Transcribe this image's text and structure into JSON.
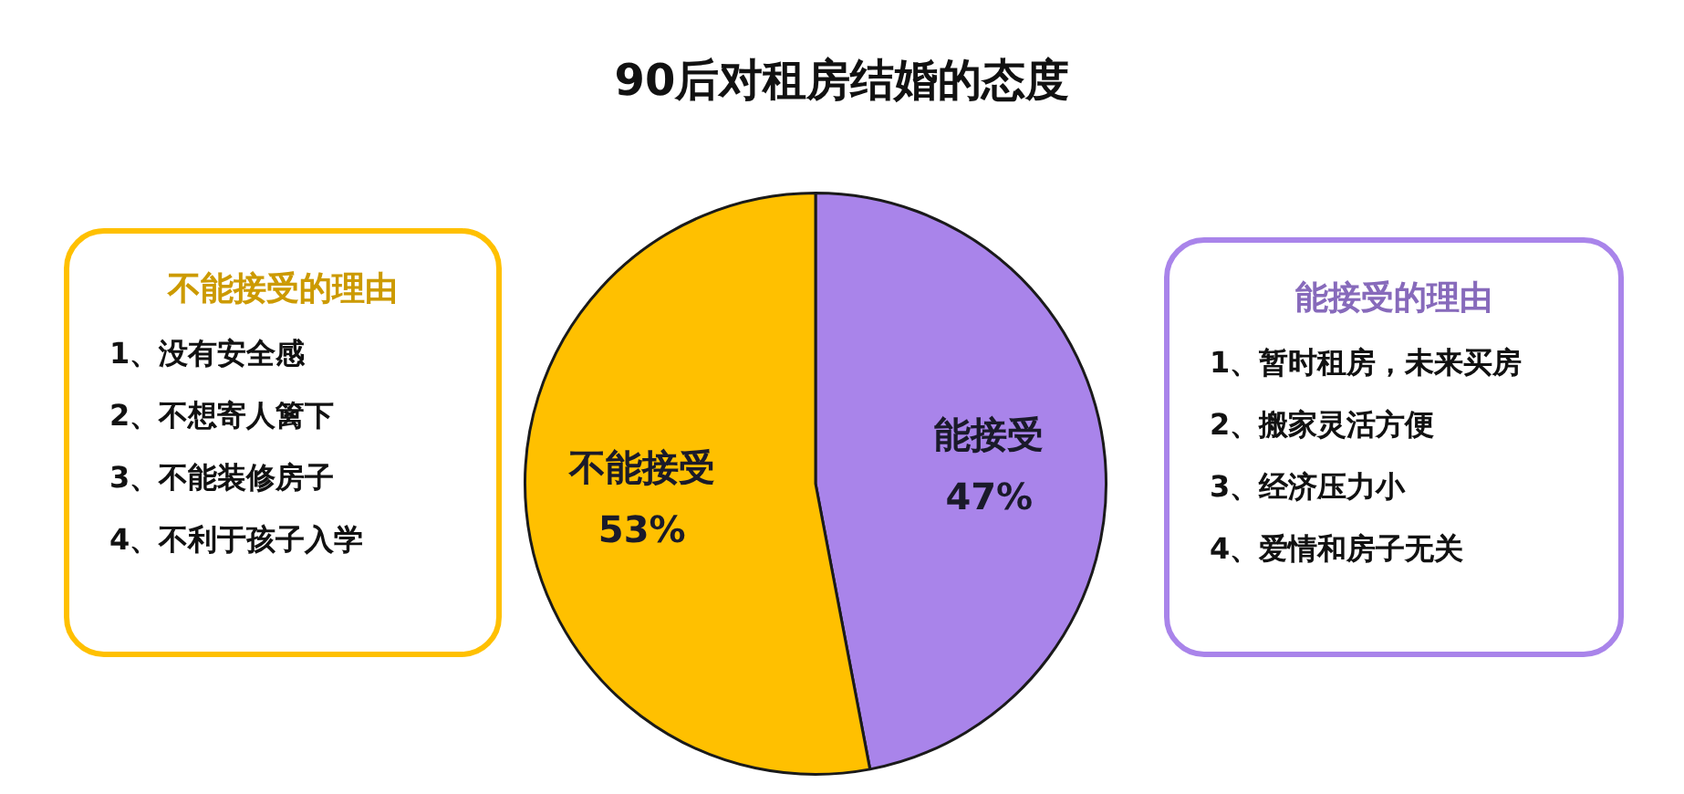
{
  "chart_data": {
    "type": "pie",
    "title": "90后对租房结婚的态度",
    "categories": [
      "能接受",
      "不能接受"
    ],
    "values": [
      47,
      53
    ],
    "value_labels": [
      "47%",
      "53%"
    ],
    "colors": [
      "#a984ea",
      "#ffc000"
    ],
    "annotations": [
      "不能接受的理由",
      "1、没有安全感",
      "2、不想寄人篱下",
      "3、不能装修房子",
      "4、不利于孩子入学",
      "能接受的理由",
      "1、暂时租房，未来买房",
      "2、搬家灵活方便",
      "3、经济压力小",
      "4、爱情和房子无关"
    ]
  }
}
